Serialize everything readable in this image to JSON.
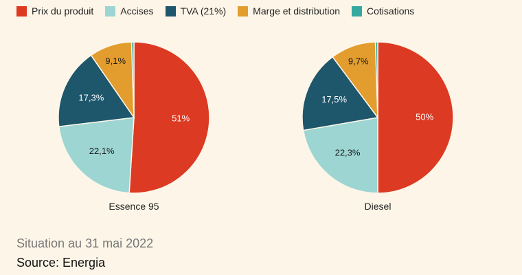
{
  "legend": {
    "items": [
      {
        "label": "Prix du produit",
        "color": "#dc3a22"
      },
      {
        "label": "Accises",
        "color": "#9dd5d2"
      },
      {
        "label": "TVA (21%)",
        "color": "#1e566c"
      },
      {
        "label": "Marge et distribution",
        "color": "#e29d2e"
      },
      {
        "label": "Cotisations",
        "color": "#35a89f"
      }
    ]
  },
  "chart_data": [
    {
      "type": "pie",
      "title": "Essence 95",
      "categories": [
        "Prix du produit",
        "Accises",
        "TVA (21%)",
        "Marge et distribution",
        "Cotisations"
      ],
      "values": [
        51.0,
        22.1,
        17.3,
        9.1,
        0.5
      ],
      "labels": [
        "51%",
        "22,1%",
        "17,3%",
        "9,1%",
        ""
      ],
      "colors": [
        "#dc3a22",
        "#9dd5d2",
        "#1e566c",
        "#e29d2e",
        "#35a89f"
      ]
    },
    {
      "type": "pie",
      "title": "Diesel",
      "categories": [
        "Prix du produit",
        "Accises",
        "TVA (21%)",
        "Marge et distribution",
        "Cotisations"
      ],
      "values": [
        50.0,
        22.3,
        17.5,
        9.7,
        0.5
      ],
      "labels": [
        "50%",
        "22,3%",
        "17,5%",
        "9,7%",
        ""
      ],
      "colors": [
        "#dc3a22",
        "#9dd5d2",
        "#1e566c",
        "#e29d2e",
        "#35a89f"
      ]
    }
  ],
  "footer": {
    "situation": "Situation au 31 mai 2022",
    "source": "Source: Energia"
  }
}
